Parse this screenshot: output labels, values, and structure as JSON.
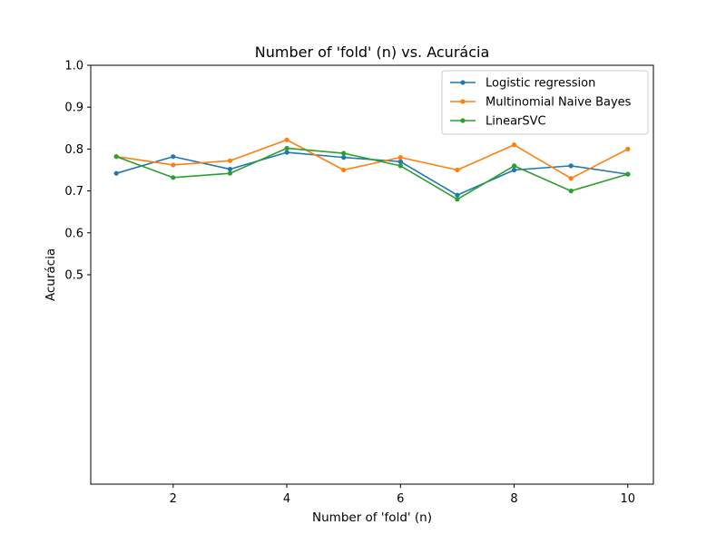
{
  "chart_data": {
    "type": "line",
    "title": "Number of 'fold' (n) vs. Acurácia",
    "xlabel": "Number of 'fold' (n)",
    "ylabel": "Acurácia",
    "x": [
      1,
      2,
      3,
      4,
      5,
      6,
      7,
      8,
      9,
      10
    ],
    "xlim": [
      0.55,
      10.45
    ],
    "ylim": [
      0.5,
      1.0
    ],
    "xticks": [
      2,
      4,
      6,
      8,
      10
    ],
    "yticks": [
      0.5,
      0.6,
      0.7,
      0.8,
      0.9,
      1.0
    ],
    "ytick_labels": [
      "0.5",
      "0.6",
      "0.7",
      "0.8",
      "0.9",
      "1.0"
    ],
    "grid": false,
    "legend_position": "top-right",
    "series": [
      {
        "name": "Logistic regression",
        "color": "#1f77b4",
        "values": [
          0.742,
          0.782,
          0.752,
          0.792,
          0.78,
          0.77,
          0.69,
          0.75,
          0.76,
          0.74
        ]
      },
      {
        "name": "Multinomial Naive Bayes",
        "color": "#ff7f0e",
        "values": [
          0.782,
          0.762,
          0.772,
          0.822,
          0.75,
          0.78,
          0.75,
          0.81,
          0.73,
          0.8
        ]
      },
      {
        "name": "LinearSVC",
        "color": "#2ca02c",
        "values": [
          0.782,
          0.732,
          0.742,
          0.802,
          0.79,
          0.76,
          0.68,
          0.76,
          0.7,
          0.74
        ]
      }
    ]
  }
}
